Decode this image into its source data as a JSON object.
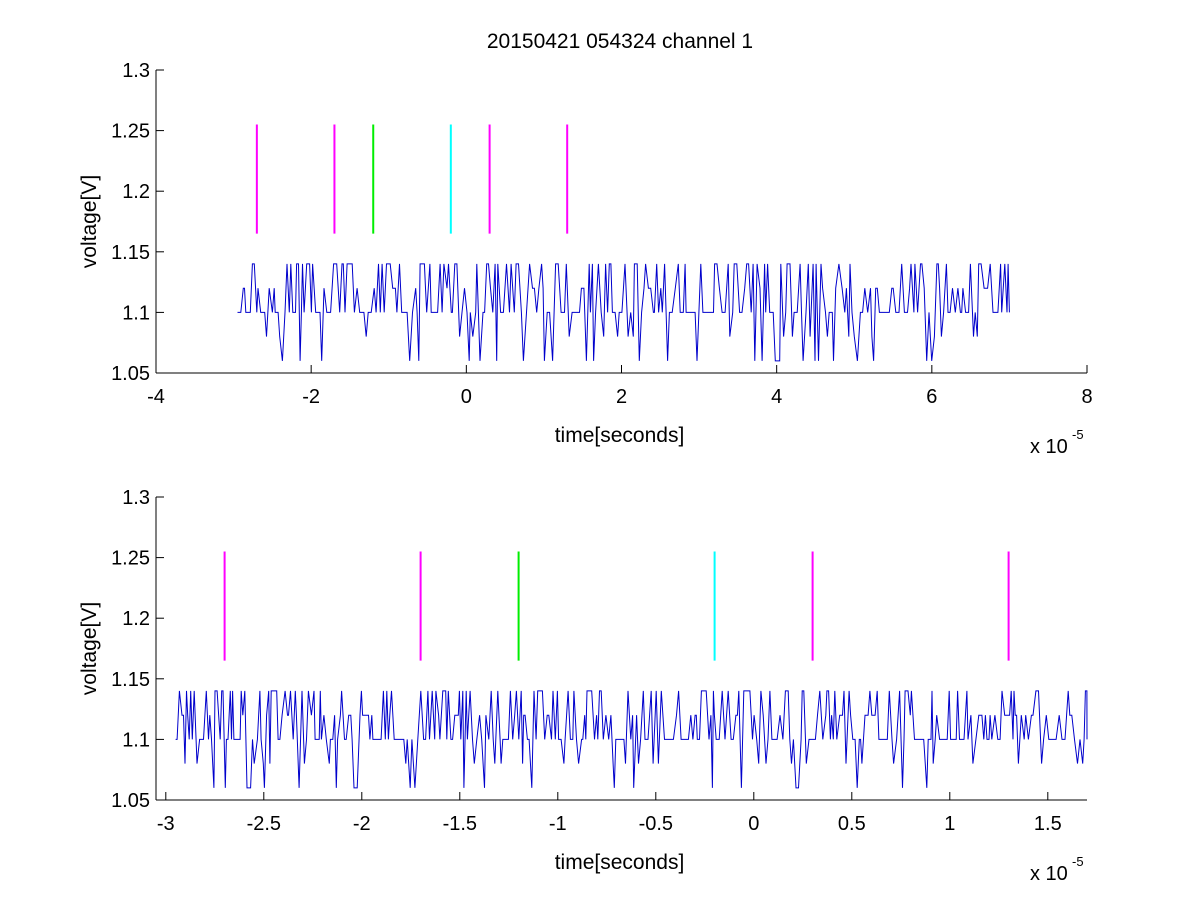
{
  "figure": {
    "title": "20150421 054324 channel 1"
  },
  "colors": {
    "signal": "#0000cc",
    "magenta": "#ff00ff",
    "green": "#00ee00",
    "cyan": "#00ffff"
  },
  "chart_data": [
    {
      "type": "line",
      "title": "20150421 054324 channel 1",
      "xlabel": "time[seconds]",
      "ylabel": "voltage[V]",
      "x_multiplier": "x 10",
      "x_multiplier_exp": "-5",
      "xlim": [
        -4,
        8
      ],
      "ylim": [
        1.05,
        1.3
      ],
      "x_ticks": [
        -4,
        -2,
        0,
        2,
        4,
        6,
        8
      ],
      "x_tick_labels": [
        "-4",
        "-2",
        "0",
        "2",
        "4",
        "6",
        "8"
      ],
      "y_ticks": [
        1.05,
        1.1,
        1.15,
        1.2,
        1.25,
        1.3
      ],
      "y_tick_labels": [
        "1.05",
        "1.1",
        "1.15",
        "1.2",
        "1.25",
        "1.3"
      ],
      "grid": false,
      "signal": {
        "x_range": [
          -2.95,
          7.0
        ],
        "baseline": 1.1,
        "levels": [
          1.06,
          1.1,
          1.12,
          1.14
        ],
        "seed": 11
      },
      "markers": [
        {
          "x": -2.7,
          "y0": 1.165,
          "y1": 1.255,
          "color": "magenta"
        },
        {
          "x": -1.7,
          "y0": 1.165,
          "y1": 1.255,
          "color": "magenta"
        },
        {
          "x": -1.2,
          "y0": 1.165,
          "y1": 1.255,
          "color": "green"
        },
        {
          "x": -0.2,
          "y0": 1.165,
          "y1": 1.255,
          "color": "cyan"
        },
        {
          "x": 0.3,
          "y0": 1.165,
          "y1": 1.255,
          "color": "magenta"
        },
        {
          "x": 1.3,
          "y0": 1.165,
          "y1": 1.255,
          "color": "magenta"
        }
      ]
    },
    {
      "type": "line",
      "xlabel": "time[seconds]",
      "ylabel": "voltage[V]",
      "x_multiplier": "x 10",
      "x_multiplier_exp": "-5",
      "xlim": [
        -3.05,
        1.7
      ],
      "ylim": [
        1.05,
        1.3
      ],
      "x_ticks": [
        -3,
        -2.5,
        -2,
        -1.5,
        -1,
        -0.5,
        0,
        0.5,
        1,
        1.5
      ],
      "x_tick_labels": [
        "-3",
        "-2.5",
        "-2",
        "-1.5",
        "-1",
        "-0.5",
        "0",
        "0.5",
        "1",
        "1.5"
      ],
      "y_ticks": [
        1.05,
        1.1,
        1.15,
        1.2,
        1.25,
        1.3
      ],
      "y_tick_labels": [
        "1.05",
        "1.1",
        "1.15",
        "1.2",
        "1.25",
        "1.3"
      ],
      "grid": false,
      "signal": {
        "x_range": [
          -2.95,
          1.7
        ],
        "baseline": 1.1,
        "levels": [
          1.06,
          1.1,
          1.12,
          1.14
        ],
        "seed": 23
      },
      "markers": [
        {
          "x": -2.7,
          "y0": 1.165,
          "y1": 1.255,
          "color": "magenta"
        },
        {
          "x": -1.7,
          "y0": 1.165,
          "y1": 1.255,
          "color": "magenta"
        },
        {
          "x": -1.2,
          "y0": 1.165,
          "y1": 1.255,
          "color": "green"
        },
        {
          "x": -0.2,
          "y0": 1.165,
          "y1": 1.255,
          "color": "cyan"
        },
        {
          "x": 0.3,
          "y0": 1.165,
          "y1": 1.255,
          "color": "magenta"
        },
        {
          "x": 1.3,
          "y0": 1.165,
          "y1": 1.255,
          "color": "magenta"
        }
      ]
    }
  ]
}
